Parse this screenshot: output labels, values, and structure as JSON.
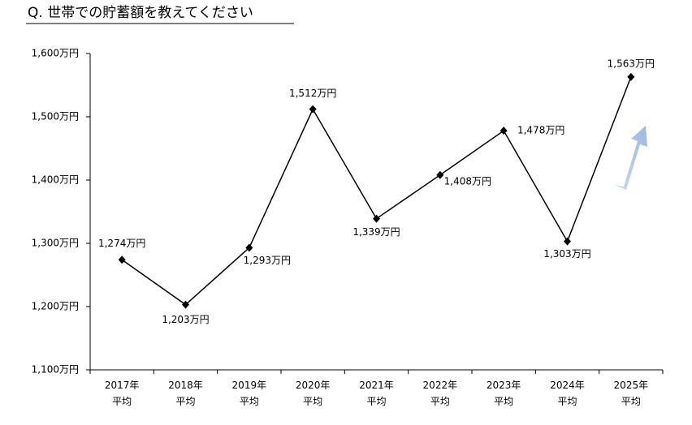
{
  "chart_data": {
    "type": "line",
    "title": "Q. 世帯での貯蓄額を教えてください",
    "categories": [
      [
        "2017年",
        "平均"
      ],
      [
        "2018年",
        "平均"
      ],
      [
        "2019年",
        "平均"
      ],
      [
        "2020年",
        "平均"
      ],
      [
        "2021年",
        "平均"
      ],
      [
        "2022年",
        "平均"
      ],
      [
        "2023年",
        "平均"
      ],
      [
        "2024年",
        "平均"
      ],
      [
        "2025年",
        "平均"
      ]
    ],
    "series": [
      {
        "color": "#000000",
        "values": [
          1274,
          1203,
          1293,
          1512,
          1339,
          1408,
          1478,
          1303,
          1563
        ],
        "value_labels": [
          "1,274万円",
          "1,203万円",
          "1,293万円",
          "1,512万円",
          "1,339万円",
          "1,408万円",
          "1,478万円",
          "1,303万円",
          "1,563万円"
        ]
      }
    ],
    "ylim": [
      1100,
      1600
    ],
    "yticks": [
      {
        "value": 1100,
        "label": "1,100万円"
      },
      {
        "value": 1200,
        "label": "1,200万円"
      },
      {
        "value": 1300,
        "label": "1,300万円"
      },
      {
        "value": 1400,
        "label": "1,400万円"
      },
      {
        "value": 1500,
        "label": "1,500万円"
      },
      {
        "value": 1600,
        "label": "1,600万円"
      }
    ],
    "grid": false
  }
}
